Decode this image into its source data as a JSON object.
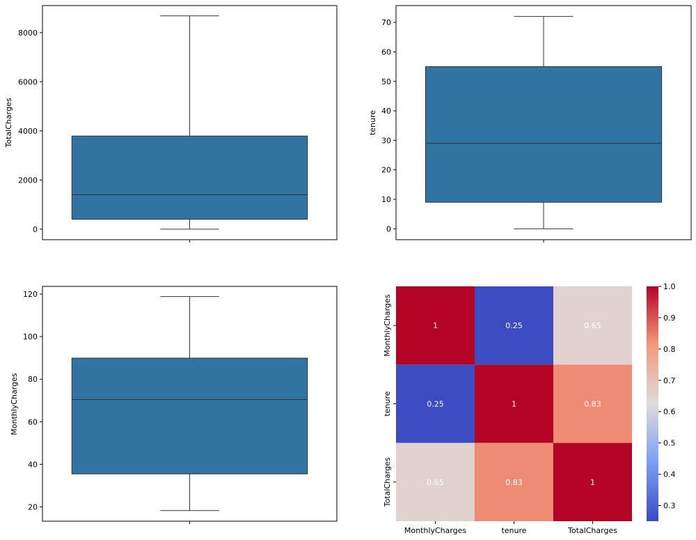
{
  "chart_data": [
    {
      "type": "box",
      "ylabel": "TotalCharges",
      "ylim": [
        -430,
        9100
      ],
      "yticks": [
        0,
        2000,
        4000,
        6000,
        8000
      ],
      "box": {
        "whisker_low": 0,
        "q1": 400,
        "median": 1400,
        "q3": 3790,
        "whisker_high": 8680
      },
      "color": "#3274a1"
    },
    {
      "type": "box",
      "ylabel": "tenure",
      "ylim": [
        -3.7,
        75.7
      ],
      "yticks": [
        0,
        10,
        20,
        30,
        40,
        50,
        60,
        70
      ],
      "box": {
        "whisker_low": 0,
        "q1": 9,
        "median": 29,
        "q3": 55,
        "whisker_high": 72
      },
      "color": "#3274a1"
    },
    {
      "type": "box",
      "ylabel": "MonthlyCharges",
      "ylim": [
        13.3,
        123.6
      ],
      "yticks": [
        20,
        40,
        60,
        80,
        100,
        120
      ],
      "box": {
        "whisker_low": 18.3,
        "q1": 35.5,
        "median": 70.4,
        "q3": 89.9,
        "whisker_high": 118.8
      },
      "color": "#3274a1"
    },
    {
      "type": "heatmap",
      "labels": [
        "MonthlyCharges",
        "tenure",
        "TotalCharges"
      ],
      "values": [
        [
          1,
          0.25,
          0.65
        ],
        [
          0.25,
          1,
          0.83
        ],
        [
          0.65,
          0.83,
          1
        ]
      ],
      "annotations": [
        [
          "1",
          "0.25",
          "0.65"
        ],
        [
          "0.25",
          "1",
          "0.83"
        ],
        [
          "0.65",
          "0.83",
          "1"
        ]
      ],
      "colormap": "coolwarm",
      "colorbar": {
        "min": 0.25,
        "max": 1.0,
        "ticks": [
          "0.3",
          "0.4",
          "0.5",
          "0.6",
          "0.7",
          "0.8",
          "0.9",
          "1.0"
        ]
      }
    }
  ]
}
